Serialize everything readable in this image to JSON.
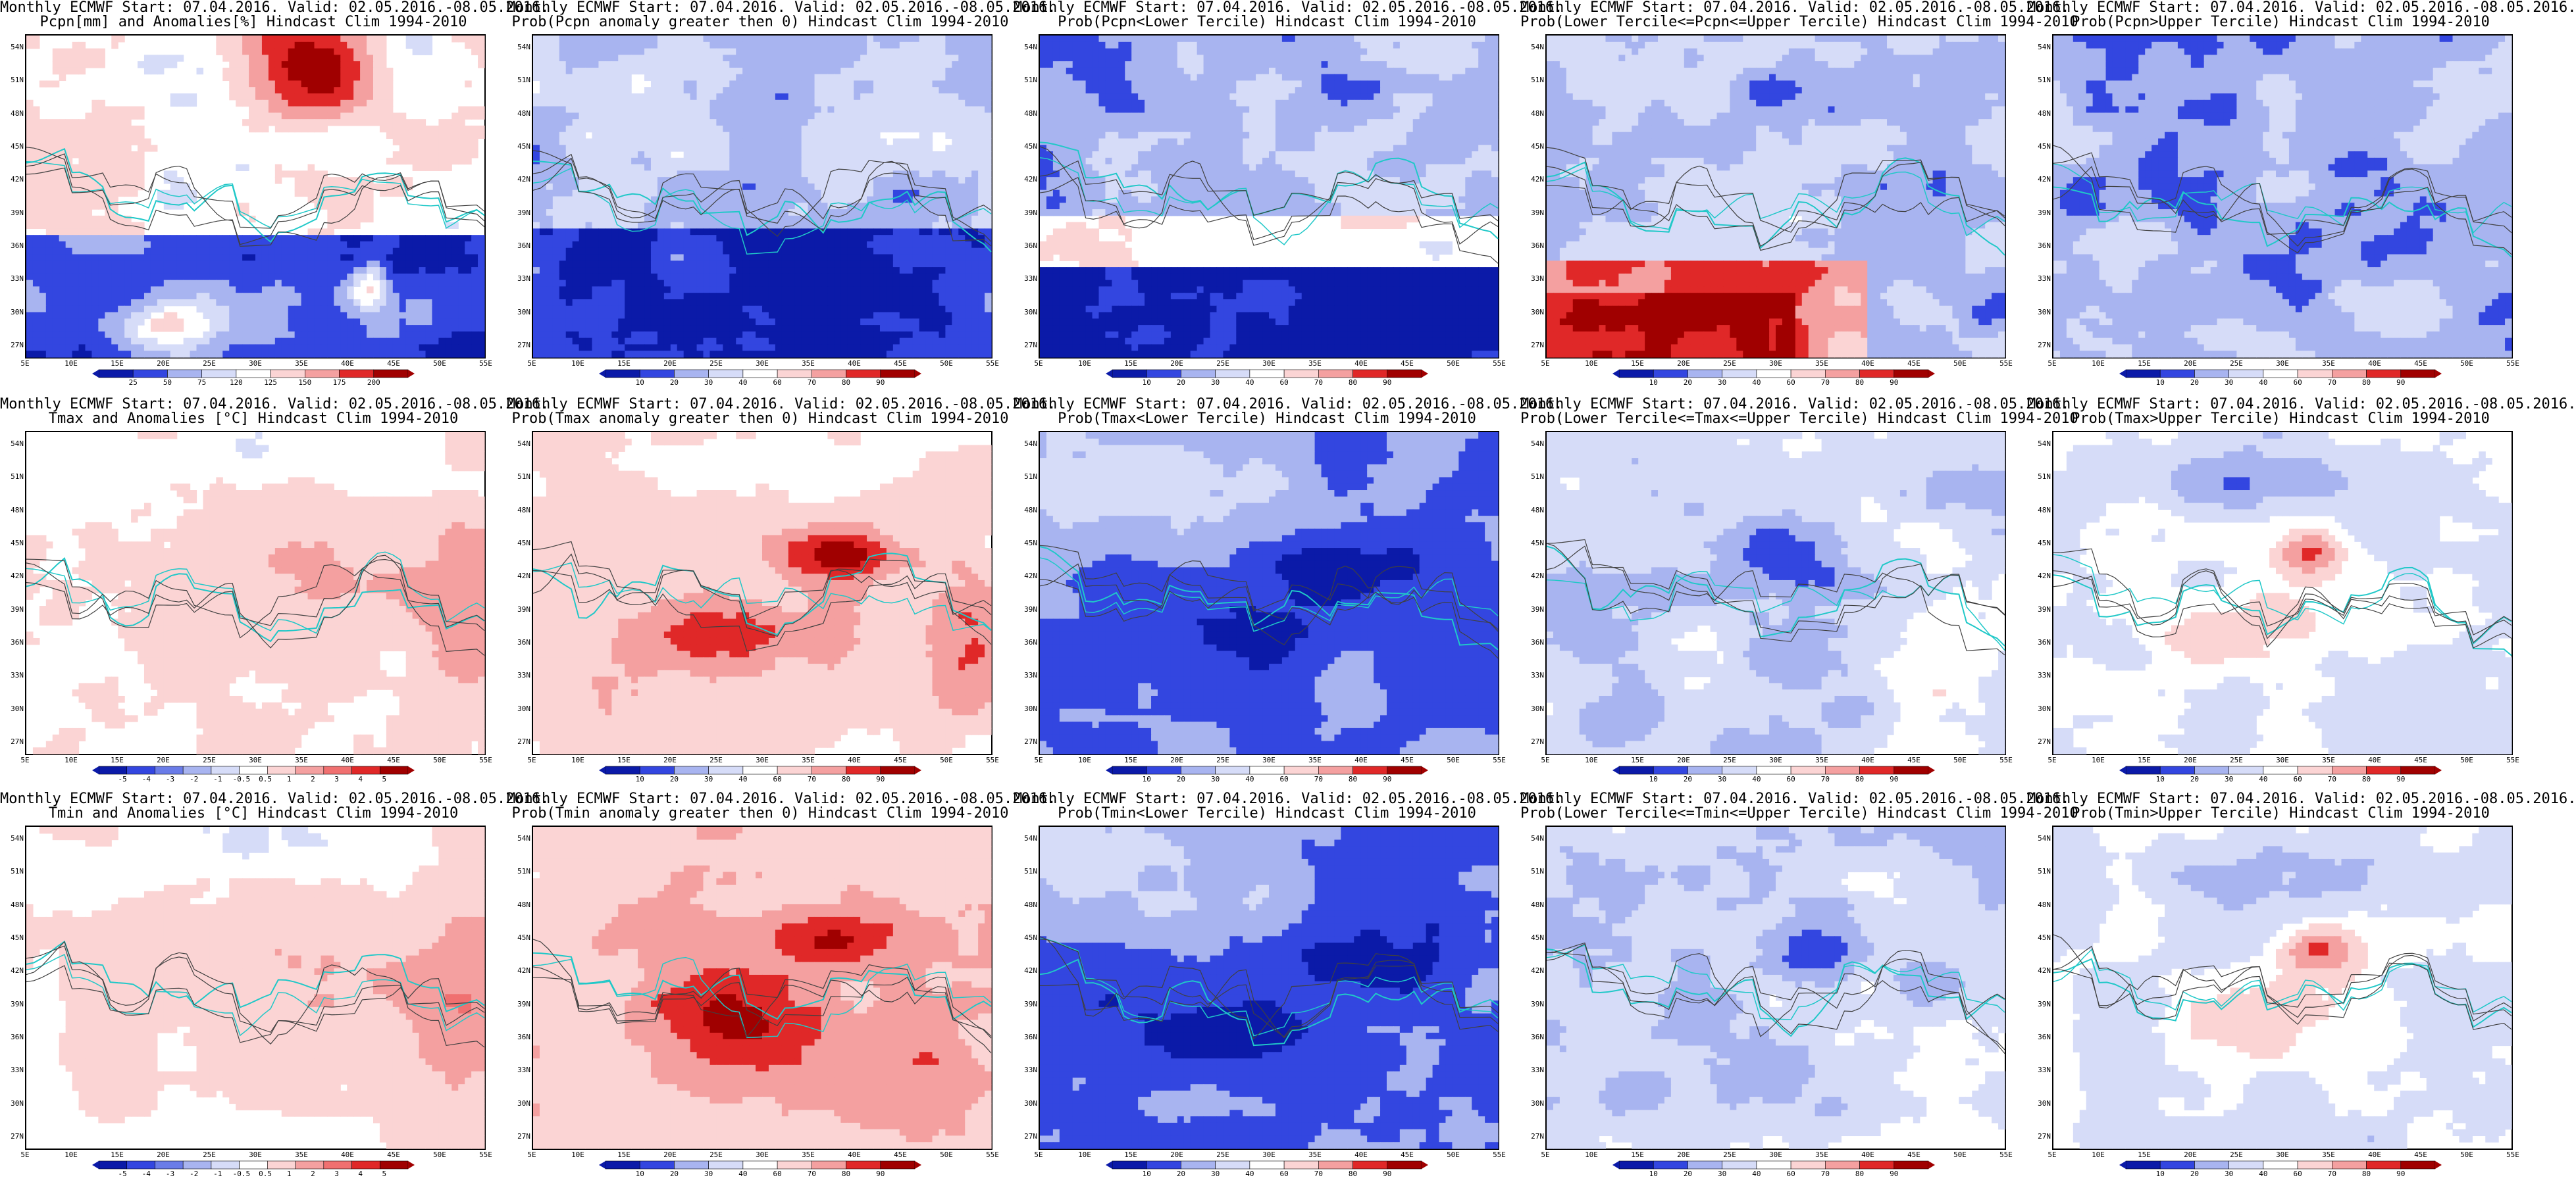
{
  "figure": {
    "lat_labels": [
      "54N",
      "51N",
      "48N",
      "45N",
      "42N",
      "39N",
      "36N",
      "33N",
      "30N",
      "27N"
    ],
    "lon_labels": [
      "5E",
      "10E",
      "15E",
      "20E",
      "25E",
      "30E",
      "35E",
      "40E",
      "45E",
      "50E",
      "55E"
    ],
    "colors": {
      "coast": "#20c8c8",
      "contour": "#404040",
      "dark_blue": "#0b1aa8",
      "blue": "#3346e0",
      "light_blue": "#a8b4f0",
      "pale_blue": "#d6dcf8",
      "pale_red": "#fbd4d4",
      "light_red": "#f4a0a0",
      "red": "#e02828",
      "dark_red": "#a00000"
    },
    "rows": [
      {
        "variable": "Pcpn",
        "panels": [
          {
            "title_line1": "Monthly ECMWF Start: 07.04.2016. Valid: 02.05.2016.-08.05.2016.",
            "title_line2": "Pcpn[mm] and Anomalies[%]",
            "title_line3": " Hindcast Clim 1994-2010",
            "pattern": "pcpn_anom",
            "colorbar": [
              "25",
              "50",
              "75",
              "120",
              "125",
              "150",
              "175",
              "200"
            ]
          },
          {
            "title_line1": "Monthly ECMWF Start: 07.04.2016. Valid: 02.05.2016.-08.05.2016.",
            "title_line2": "Prob(Pcpn anomaly greater then 0)",
            "title_line3": " Hindcast Clim 1994-2010",
            "pattern": "pcpn_pos",
            "colorbar": [
              "10",
              "20",
              "30",
              "40",
              "60",
              "70",
              "80",
              "90"
            ]
          },
          {
            "title_line1": "Monthly ECMWF Start: 07.04.2016. Valid: 02.05.2016.-08.05.2016.",
            "title_line2": "Prob(Pcpn<Lower Tercile)",
            "title_line3": " Hindcast Clim 1994-2010",
            "pattern": "pcpn_lower",
            "colorbar": [
              "10",
              "20",
              "30",
              "40",
              "60",
              "70",
              "80",
              "90"
            ]
          },
          {
            "title_line1": "Monthly ECMWF Start: 07.04.2016. Valid: 02.05.2016.-08.05.2016.",
            "title_line2": "Prob(Lower Tercile<=Pcpn<=Upper Tercile)",
            "title_line3": " Hindcast Clim 1994-2010",
            "pattern": "pcpn_mid",
            "colorbar": [
              "10",
              "20",
              "30",
              "40",
              "60",
              "70",
              "80",
              "90"
            ]
          },
          {
            "title_line1": "Monthly ECMWF Start: 07.04.2016. Valid: 02.05.2016.-08.05.2016.",
            "title_line2": "Prob(Pcpn>Upper Tercile)",
            "title_line3": " Hindcast Clim 1994-2010",
            "pattern": "pcpn_upper",
            "colorbar": [
              "10",
              "20",
              "30",
              "40",
              "60",
              "70",
              "80",
              "90"
            ]
          }
        ]
      },
      {
        "variable": "Tmax",
        "panels": [
          {
            "title_line1": "Monthly ECMWF Start: 07.04.2016. Valid: 02.05.2016.-08.05.2016.",
            "title_line2": "Tmax and Anomalies [°C]",
            "title_line3": " Hindcast Clim 1994-2010",
            "pattern": "t_anom",
            "colorbar": [
              "-5",
              "-4",
              "-3",
              "-2",
              "-1",
              "-0.5",
              "0.5",
              "1",
              "2",
              "3",
              "4",
              "5"
            ]
          },
          {
            "title_line1": "Monthly ECMWF Start: 07.04.2016. Valid: 02.05.2016.-08.05.2016.",
            "title_line2": "Prob(Tmax anomaly greater then 0)",
            "title_line3": " Hindcast Clim 1994-2010",
            "pattern": "t_pos",
            "colorbar": [
              "10",
              "20",
              "30",
              "40",
              "60",
              "70",
              "80",
              "90"
            ]
          },
          {
            "title_line1": "Monthly ECMWF Start: 07.04.2016. Valid: 02.05.2016.-08.05.2016.",
            "title_line2": "Prob(Tmax<Lower Tercile)",
            "title_line3": " Hindcast Clim 1994-2010",
            "pattern": "t_lower",
            "colorbar": [
              "10",
              "20",
              "30",
              "40",
              "60",
              "70",
              "80",
              "90"
            ]
          },
          {
            "title_line1": "Monthly ECMWF Start: 07.04.2016. Valid: 02.05.2016.-08.05.2016.",
            "title_line2": "Prob(Lower Tercile<=Tmax<=Upper Tercile)",
            "title_line3": " Hindcast Clim 1994-2010",
            "pattern": "t_mid",
            "colorbar": [
              "10",
              "20",
              "30",
              "40",
              "60",
              "70",
              "80",
              "90"
            ]
          },
          {
            "title_line1": "Monthly ECMWF Start: 07.04.2016. Valid: 02.05.2016.-08.05.2016.",
            "title_line2": "Prob(Tmax>Upper Tercile)",
            "title_line3": " Hindcast Clim 1994-2010",
            "pattern": "t_upper",
            "colorbar": [
              "10",
              "20",
              "30",
              "40",
              "60",
              "70",
              "80",
              "90"
            ]
          }
        ]
      },
      {
        "variable": "Tmin",
        "panels": [
          {
            "title_line1": "Monthly ECMWF Start: 07.04.2016. Valid: 02.05.2016.-08.05.2016.",
            "title_line2": "Tmin and Anomalies [°C]",
            "title_line3": " Hindcast Clim 1994-2010",
            "pattern": "t_anom",
            "colorbar": [
              "-5",
              "-4",
              "-3",
              "-2",
              "-1",
              "-0.5",
              "0.5",
              "1",
              "2",
              "3",
              "4",
              "5"
            ]
          },
          {
            "title_line1": "Monthly ECMWF Start: 07.04.2016. Valid: 02.05.2016.-08.05.2016.",
            "title_line2": "Prob(Tmin anomaly greater then 0)",
            "title_line3": " Hindcast Clim 1994-2010",
            "pattern": "tmin_pos",
            "colorbar": [
              "10",
              "20",
              "30",
              "40",
              "60",
              "70",
              "80",
              "90"
            ]
          },
          {
            "title_line1": "Monthly ECMWF Start: 07.04.2016. Valid: 02.05.2016.-08.05.2016.",
            "title_line2": "Prob(Tmin<Lower Tercile)",
            "title_line3": " Hindcast Clim 1994-2010",
            "pattern": "t_lower",
            "colorbar": [
              "10",
              "20",
              "30",
              "40",
              "60",
              "70",
              "80",
              "90"
            ]
          },
          {
            "title_line1": "Monthly ECMWF Start: 07.04.2016. Valid: 02.05.2016.-08.05.2016.",
            "title_line2": "Prob(Lower Tercile<=Tmin<=Upper Tercile)",
            "title_line3": " Hindcast Clim 1994-2010",
            "pattern": "t_mid",
            "colorbar": [
              "10",
              "20",
              "30",
              "40",
              "60",
              "70",
              "80",
              "90"
            ]
          },
          {
            "title_line1": "Monthly ECMWF Start: 07.04.2016. Valid: 02.05.2016.-08.05.2016.",
            "title_line2": "Prob(Tmin>Upper Tercile)",
            "title_line3": " Hindcast Clim 1994-2010",
            "pattern": "t_upper",
            "colorbar": [
              "10",
              "20",
              "30",
              "40",
              "60",
              "70",
              "80",
              "90"
            ]
          }
        ]
      }
    ]
  }
}
